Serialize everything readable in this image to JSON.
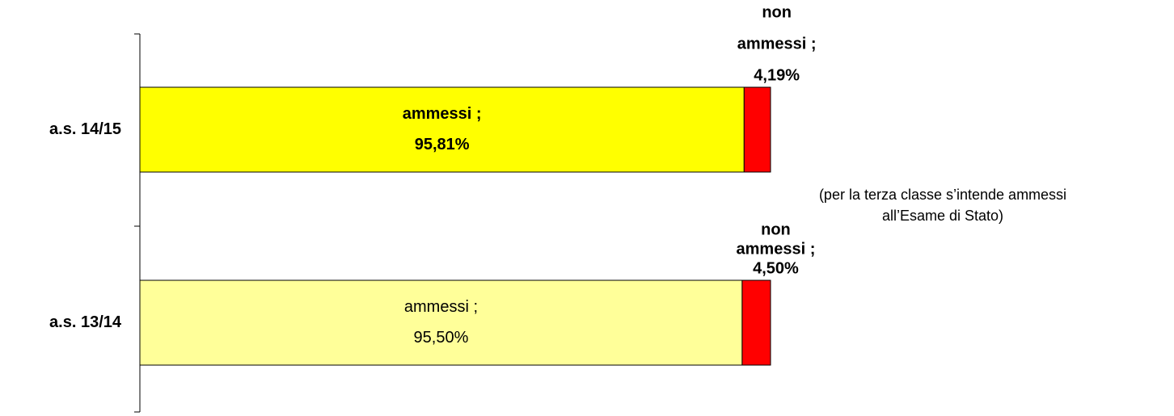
{
  "chart_data": {
    "type": "stacked-bar-horizontal",
    "categories": [
      "a.s. 14/15",
      "a.s. 13/14"
    ],
    "xlim": [
      0,
      100
    ],
    "series": [
      {
        "name": "ammessi",
        "colors": [
          "#FFFF00",
          "#FFFF99"
        ],
        "values": [
          95.81,
          95.5
        ],
        "value_labels": [
          [
            "ammessi ;",
            "95,81%"
          ],
          [
            "ammessi ;",
            "95,50%"
          ]
        ]
      },
      {
        "name": "non ammessi",
        "colors": [
          "#FF0000",
          "#FF0000"
        ],
        "values": [
          4.19,
          4.5
        ],
        "value_labels": [
          [
            "non",
            "ammessi ;",
            "4,19%"
          ],
          [
            "non",
            "ammessi ;",
            "4,50%"
          ]
        ]
      }
    ],
    "bold_labels": [
      true,
      false
    ],
    "annotation": [
      "(per la terza classe s’intende ammessi",
      "all’Esame di Stato)"
    ]
  }
}
